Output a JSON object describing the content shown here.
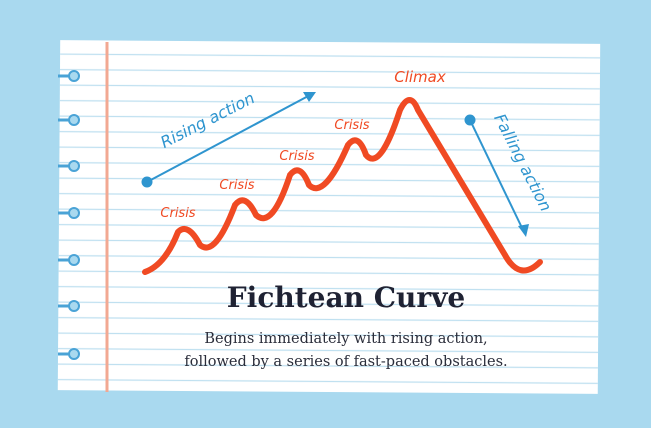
{
  "labels": {
    "rising": "Rising action",
    "falling": "Falling action",
    "climax": "Climax",
    "crises": [
      "Crisis",
      "Crisis",
      "Crisis",
      "Crisis"
    ]
  },
  "title": "Fichtean Curve",
  "subtitle": [
    "Begins immediately with rising action,",
    "followed by a series of fast-paced obstacles."
  ]
}
